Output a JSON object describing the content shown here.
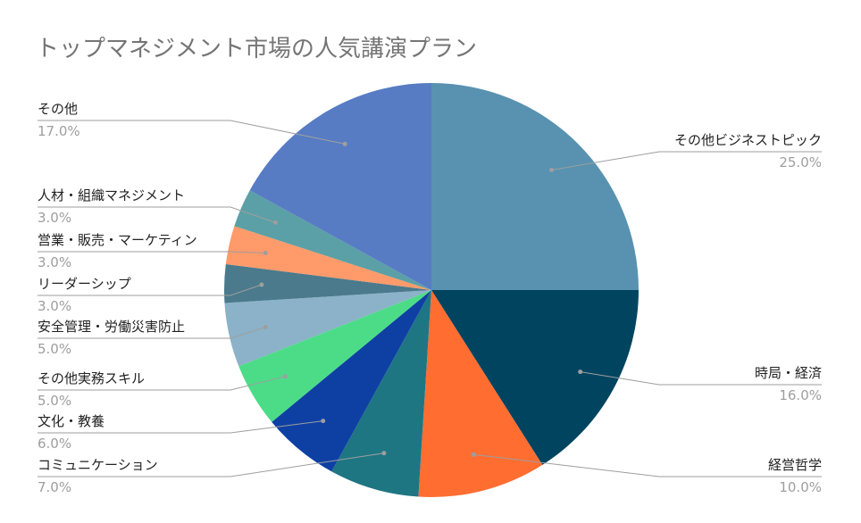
{
  "chart_data": {
    "type": "pie",
    "title": "トップマネジメント市場の人気講演プラン",
    "legend": "none",
    "slices": [
      {
        "label": "その他ビジネストピック",
        "value": 25.0,
        "pct": "25.0%",
        "color": "#5892b0",
        "side": "right"
      },
      {
        "label": "時局・経済",
        "value": 16.0,
        "pct": "16.0%",
        "color": "#004460",
        "side": "right"
      },
      {
        "label": "経営哲学",
        "value": 10.0,
        "pct": "10.0%",
        "color": "#ff6d31",
        "side": "right"
      },
      {
        "label": "コミュニケーション",
        "value": 7.0,
        "pct": "7.0%",
        "color": "#1e7683",
        "side": "left"
      },
      {
        "label": "文化・教養",
        "value": 6.0,
        "pct": "6.0%",
        "color": "#0e40a4",
        "side": "left"
      },
      {
        "label": "その他実務スキル",
        "value": 5.0,
        "pct": "5.0%",
        "color": "#4cdc88",
        "side": "left"
      },
      {
        "label": "安全管理・労働災害防止",
        "value": 5.0,
        "pct": "5.0%",
        "color": "#8bb2c8",
        "side": "left"
      },
      {
        "label": "リーダーシップ",
        "value": 3.0,
        "pct": "3.0%",
        "color": "#4a7a8c",
        "side": "left"
      },
      {
        "label": "営業・販売・マーケティン",
        "value": 3.0,
        "pct": "3.0%",
        "color": "#ff9a6a",
        "side": "left"
      },
      {
        "label": "人材・組織マネジメント",
        "value": 3.0,
        "pct": "3.0%",
        "color": "#5ba0a6",
        "side": "left"
      },
      {
        "label": "その他",
        "value": 17.0,
        "pct": "17.0%",
        "color": "#577cc4",
        "side": "left"
      }
    ]
  }
}
